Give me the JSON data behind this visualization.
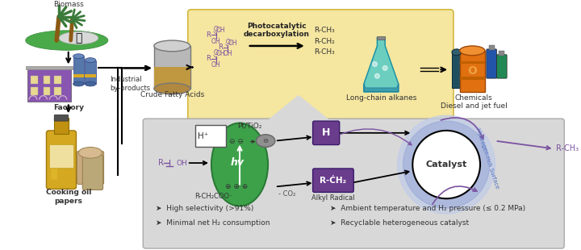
{
  "bg_color": "#ffffff",
  "top_box_color": "#f5e6a0",
  "top_box_edge": "#d4b840",
  "bottom_box_color": "#d8d8d8",
  "bottom_box_edge": "#aaaaaa",
  "arrow_color": "#333333",
  "purple_color": "#7b52a0",
  "purple_box_color": "#6a3c8c",
  "green_ellipse_color": "#3da14a",
  "green_ellipse_edge": "#2a7a35",
  "catalyst_outer_color": "#b8c8e8",
  "catalyst_mid_color": "#8898cc",
  "bullet_points_left": [
    "High selectivity (>91%)",
    "Minimal net H₂ consumption"
  ],
  "bullet_points_right": [
    "Ambient temperature and H₂ pressure (≤ 0.2 MPa)",
    "Recyclable heterogeneous catalyst"
  ],
  "labels": {
    "biomass": "Biomass",
    "factory": "Factory",
    "industrial": "Industrial\nby-products",
    "cooking": "Cooking oil\npapers",
    "crude": "Crude Fatty Acids",
    "photo": "Photocatalytic\ndecarboxylation",
    "longchain": "Long-chain alkanes",
    "chemicals": "Chemicals\nDiesel and jet fuel",
    "pt_tio2": "Pt/TiO₂",
    "hv": "hv",
    "h_plus": "H⁺",
    "catalyst": "Catalyst",
    "h_label": "H",
    "alkyl": "Alkyl Radical",
    "co2": "- CO₂",
    "hydrogen_rich": "Hydrogen-rich Surface",
    "rch3_product": "R-CH₃"
  }
}
